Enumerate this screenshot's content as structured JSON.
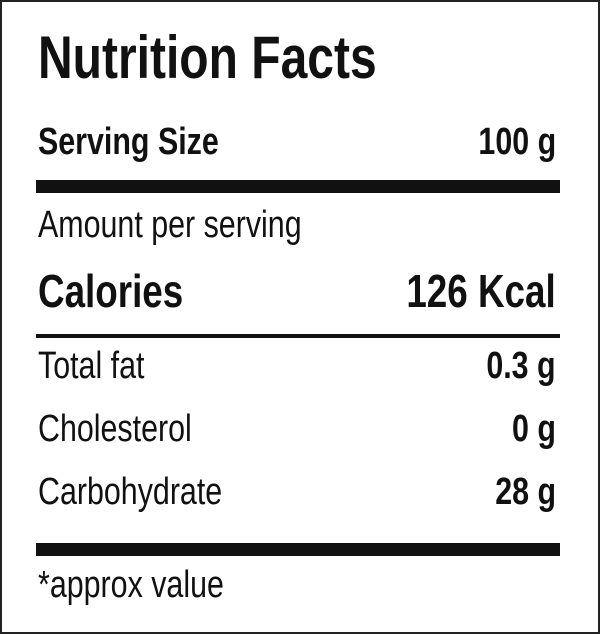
{
  "title": "Nutrition Facts",
  "serving": {
    "label": "Serving Size",
    "value": "100 g"
  },
  "amount_label": "Amount per serving",
  "calories": {
    "label": "Calories",
    "value": "126 Kcal"
  },
  "nutrients": [
    {
      "label": "Total fat",
      "value": "0.3 g"
    },
    {
      "label": "Cholesterol",
      "value": "0 g"
    },
    {
      "label": "Carbohydrate",
      "value": "28 g"
    }
  ],
  "footnote": "*approx value"
}
